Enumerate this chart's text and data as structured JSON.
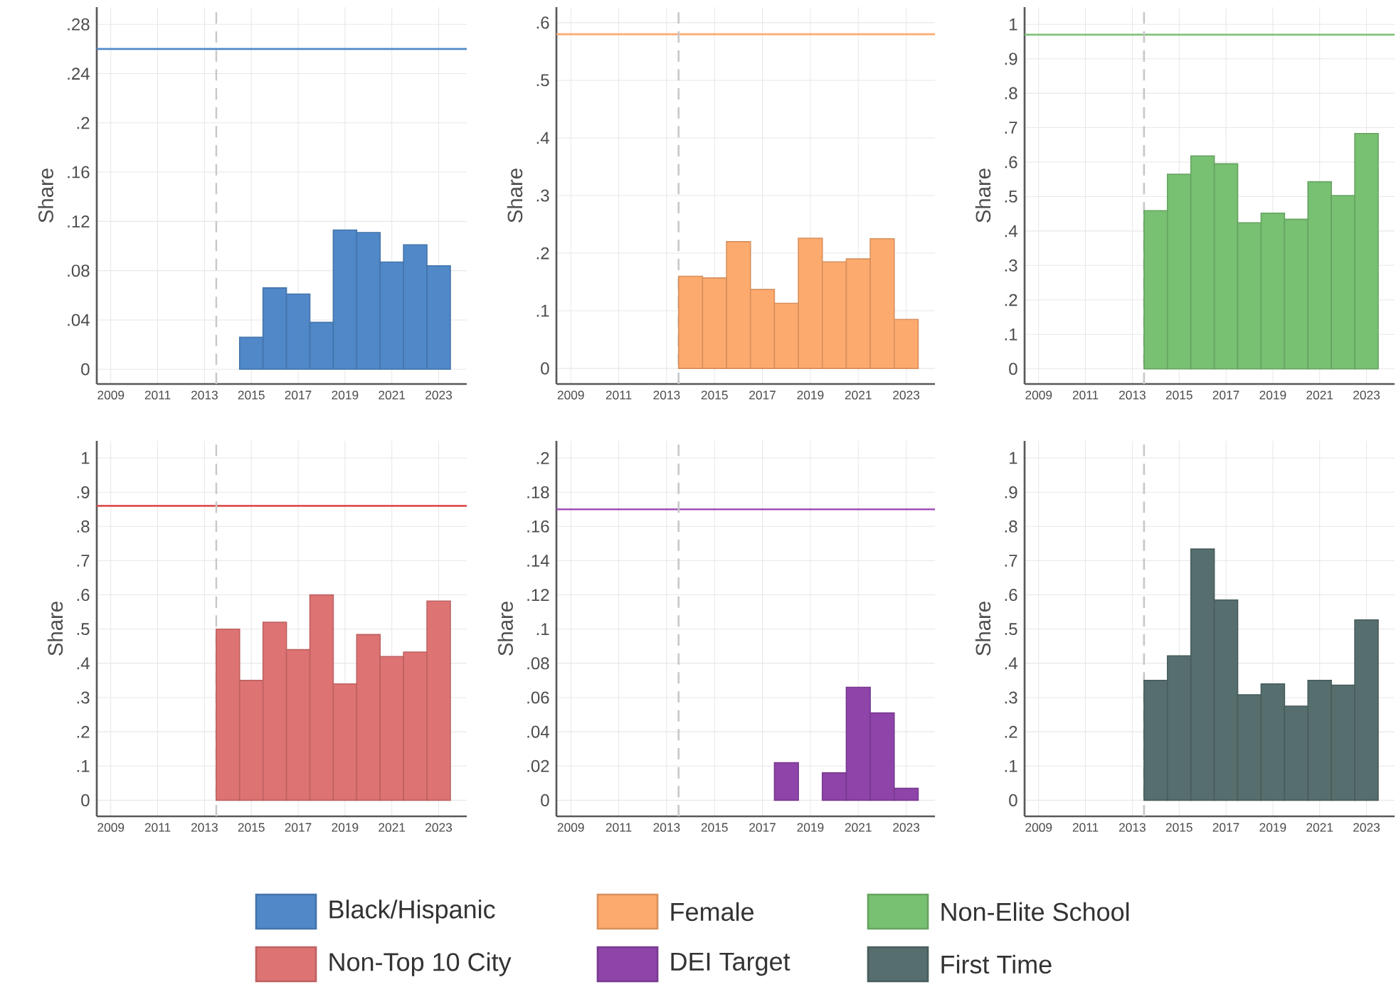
{
  "chart_data": [
    {
      "type": "bar",
      "ylabel": "Share",
      "x": [
        2015,
        2016,
        2017,
        2018,
        2019,
        2020,
        2021,
        2022,
        2023
      ],
      "xlim": [
        2008.4,
        2024.2
      ],
      "xticks": [
        2009,
        2011,
        2013,
        2015,
        2017,
        2019,
        2021,
        2023
      ],
      "ylim": [
        -0.012,
        0.294
      ],
      "yticks": [
        0,
        {
          "value": 0.04,
          "label": ".04"
        },
        {
          "value": 0.08,
          "label": ".08"
        },
        {
          "value": 0.12,
          "label": ".12"
        },
        {
          "value": 0.16,
          "label": ".16"
        },
        {
          "value": 0.2,
          "label": ".2"
        },
        {
          "value": 0.24,
          "label": ".24"
        },
        {
          "value": 0.28,
          "label": ".28"
        }
      ],
      "grid": true,
      "legend": "bottom",
      "series": [
        {
          "name": "Black/Hispanic",
          "color": "#5088c8",
          "values": [
            0.026,
            0.066,
            0.061,
            0.038,
            0.113,
            0.111,
            0.087,
            0.101,
            0.084
          ]
        }
      ],
      "ref_lines": [
        {
          "axis": "y",
          "value": 0.26,
          "color": "#5088c8",
          "line_style": "solid"
        },
        {
          "axis": "x",
          "value": 2013.5,
          "color": "#c8c8c8",
          "line_style": "dashed"
        }
      ]
    },
    {
      "type": "bar",
      "ylabel": "Share",
      "x": [
        2014,
        2015,
        2016,
        2017,
        2018,
        2019,
        2020,
        2021,
        2022,
        2023
      ],
      "xlim": [
        2008.4,
        2024.2
      ],
      "xticks": [
        2009,
        2011,
        2013,
        2015,
        2017,
        2019,
        2021,
        2023
      ],
      "ylim": [
        -0.027,
        0.627
      ],
      "yticks": [
        0,
        {
          "value": 0.1,
          "label": ".1"
        },
        {
          "value": 0.2,
          "label": ".2"
        },
        {
          "value": 0.3,
          "label": ".3"
        },
        {
          "value": 0.4,
          "label": ".4"
        },
        {
          "value": 0.5,
          "label": ".5"
        },
        {
          "value": 0.6,
          "label": ".6"
        }
      ],
      "grid": true,
      "legend": "bottom",
      "series": [
        {
          "name": "Female",
          "color": "#fdaa6e",
          "values": [
            0.16,
            0.157,
            0.22,
            0.137,
            0.113,
            0.226,
            0.185,
            0.19,
            0.225,
            0.085
          ]
        }
      ],
      "ref_lines": [
        {
          "axis": "y",
          "value": 0.58,
          "color": "#fdaa6e",
          "line_style": "solid"
        },
        {
          "axis": "x",
          "value": 2013.5,
          "color": "#c8c8c8",
          "line_style": "dashed"
        }
      ]
    },
    {
      "type": "bar",
      "ylabel": "Share",
      "x": [
        2014,
        2015,
        2016,
        2017,
        2018,
        2019,
        2020,
        2021,
        2022,
        2023
      ],
      "xlim": [
        2008.4,
        2024.2
      ],
      "xticks": [
        2009,
        2011,
        2013,
        2015,
        2017,
        2019,
        2021,
        2023
      ],
      "ylim": [
        -0.044,
        1.05
      ],
      "yticks": [
        0,
        {
          "value": 0.1,
          "label": ".1"
        },
        {
          "value": 0.2,
          "label": ".2"
        },
        {
          "value": 0.3,
          "label": ".3"
        },
        {
          "value": 0.4,
          "label": ".4"
        },
        {
          "value": 0.5,
          "label": ".5"
        },
        {
          "value": 0.6,
          "label": ".6"
        },
        {
          "value": 0.7,
          "label": ".7"
        },
        {
          "value": 0.8,
          "label": ".8"
        },
        {
          "value": 0.9,
          "label": ".9"
        },
        1
      ],
      "grid": true,
      "legend": "bottom",
      "series": [
        {
          "name": "Non-Elite School",
          "color": "#78c072",
          "values": [
            0.459,
            0.565,
            0.618,
            0.595,
            0.424,
            0.452,
            0.434,
            0.543,
            0.503,
            0.683
          ]
        }
      ],
      "ref_lines": [
        {
          "axis": "y",
          "value": 0.97,
          "color": "#78c072",
          "line_style": "solid"
        },
        {
          "axis": "x",
          "value": 2013.5,
          "color": "#c8c8c8",
          "line_style": "dashed"
        }
      ]
    },
    {
      "type": "bar",
      "ylabel": "Share",
      "x": [
        2014,
        2015,
        2016,
        2017,
        2018,
        2019,
        2020,
        2021,
        2022,
        2023
      ],
      "xlim": [
        2008.4,
        2024.2
      ],
      "xticks": [
        2009,
        2011,
        2013,
        2015,
        2017,
        2019,
        2021,
        2023
      ],
      "ylim": [
        -0.047,
        1.05
      ],
      "yticks": [
        0,
        {
          "value": 0.1,
          "label": ".1"
        },
        {
          "value": 0.2,
          "label": ".2"
        },
        {
          "value": 0.3,
          "label": ".3"
        },
        {
          "value": 0.4,
          "label": ".4"
        },
        {
          "value": 0.5,
          "label": ".5"
        },
        {
          "value": 0.6,
          "label": ".6"
        },
        {
          "value": 0.7,
          "label": ".7"
        },
        {
          "value": 0.8,
          "label": ".8"
        },
        {
          "value": 0.9,
          "label": ".9"
        },
        1
      ],
      "grid": true,
      "legend": "bottom",
      "series": [
        {
          "name": "Non-Top 10 City",
          "color": "#de7373",
          "values": [
            0.5,
            0.35,
            0.52,
            0.44,
            0.6,
            0.34,
            0.484,
            0.42,
            0.433,
            0.582
          ]
        }
      ],
      "ref_lines": [
        {
          "axis": "y",
          "value": 0.86,
          "color": "#e05050",
          "line_style": "solid"
        },
        {
          "axis": "x",
          "value": 2013.5,
          "color": "#c8c8c8",
          "line_style": "dashed"
        }
      ]
    },
    {
      "type": "bar",
      "ylabel": "Share",
      "x": [
        2018,
        2020,
        2021,
        2022,
        2023
      ],
      "xlim": [
        2008.4,
        2024.2
      ],
      "xticks": [
        2009,
        2011,
        2013,
        2015,
        2017,
        2019,
        2021,
        2023
      ],
      "ylim": [
        -0.0094,
        0.21
      ],
      "yticks": [
        0,
        {
          "value": 0.02,
          "label": ".02"
        },
        {
          "value": 0.04,
          "label": ".04"
        },
        {
          "value": 0.06,
          "label": ".06"
        },
        {
          "value": 0.08,
          "label": ".08"
        },
        {
          "value": 0.1,
          "label": ".1"
        },
        {
          "value": 0.12,
          "label": ".12"
        },
        {
          "value": 0.14,
          "label": ".14"
        },
        {
          "value": 0.16,
          "label": ".16"
        },
        {
          "value": 0.18,
          "label": ".18"
        },
        {
          "value": 0.2,
          "label": ".2"
        }
      ],
      "grid": true,
      "legend": "bottom",
      "series": [
        {
          "name": "DEI Target",
          "color": "#8e44a8",
          "values": [
            0.022,
            0.016,
            0.066,
            0.051,
            0.007
          ]
        }
      ],
      "ref_lines": [
        {
          "axis": "y",
          "value": 0.17,
          "color": "#a050b8",
          "line_style": "solid"
        },
        {
          "axis": "x",
          "value": 2013.5,
          "color": "#c8c8c8",
          "line_style": "dashed"
        }
      ]
    },
    {
      "type": "bar",
      "ylabel": "Share",
      "x": [
        2014,
        2015,
        2016,
        2017,
        2018,
        2019,
        2020,
        2021,
        2022,
        2023
      ],
      "xlim": [
        2008.4,
        2024.2
      ],
      "xticks": [
        2009,
        2011,
        2013,
        2015,
        2017,
        2019,
        2021,
        2023
      ],
      "ylim": [
        -0.047,
        1.05
      ],
      "yticks": [
        0,
        {
          "value": 0.1,
          "label": ".1"
        },
        {
          "value": 0.2,
          "label": ".2"
        },
        {
          "value": 0.3,
          "label": ".3"
        },
        {
          "value": 0.4,
          "label": ".4"
        },
        {
          "value": 0.5,
          "label": ".5"
        },
        {
          "value": 0.6,
          "label": ".6"
        },
        {
          "value": 0.7,
          "label": ".7"
        },
        {
          "value": 0.8,
          "label": ".8"
        },
        {
          "value": 0.9,
          "label": ".9"
        },
        1
      ],
      "grid": true,
      "legend": "bottom",
      "series": [
        {
          "name": "First Time",
          "color": "#566e6e",
          "values": [
            0.35,
            0.422,
            0.734,
            0.585,
            0.308,
            0.34,
            0.275,
            0.35,
            0.336,
            0.527
          ]
        }
      ],
      "ref_lines": [
        {
          "axis": "x",
          "value": 2013.5,
          "color": "#c8c8c8",
          "line_style": "dashed"
        }
      ]
    }
  ]
}
